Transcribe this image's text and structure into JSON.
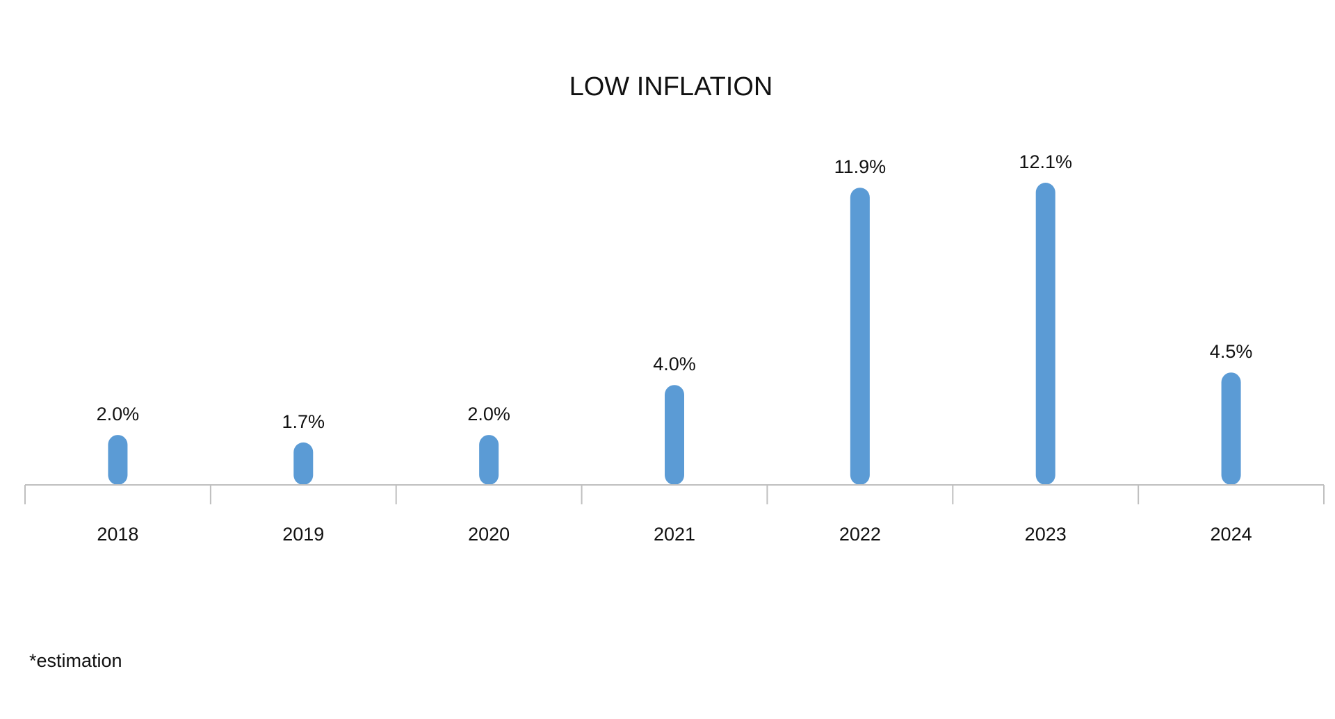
{
  "chart_data": {
    "type": "bar",
    "title": "LOW INFLATION",
    "categories": [
      "2018",
      "2019",
      "2020",
      "2021",
      "2022",
      "2023",
      "2024"
    ],
    "values": [
      2.0,
      1.7,
      2.0,
      4.0,
      11.9,
      12.1,
      4.5
    ],
    "data_labels": [
      "2.0%",
      "1.7%",
      "2.0%",
      "4.0%",
      "11.9%",
      "12.1%",
      "4.5%"
    ],
    "value_unit": "%",
    "ylim": [
      0,
      12.1
    ],
    "grid": false,
    "legend": "none",
    "y_axis_visible": false,
    "bar_color": "#5b9bd5",
    "axis_color": "#bfbfbf"
  },
  "footnote": "*estimation"
}
